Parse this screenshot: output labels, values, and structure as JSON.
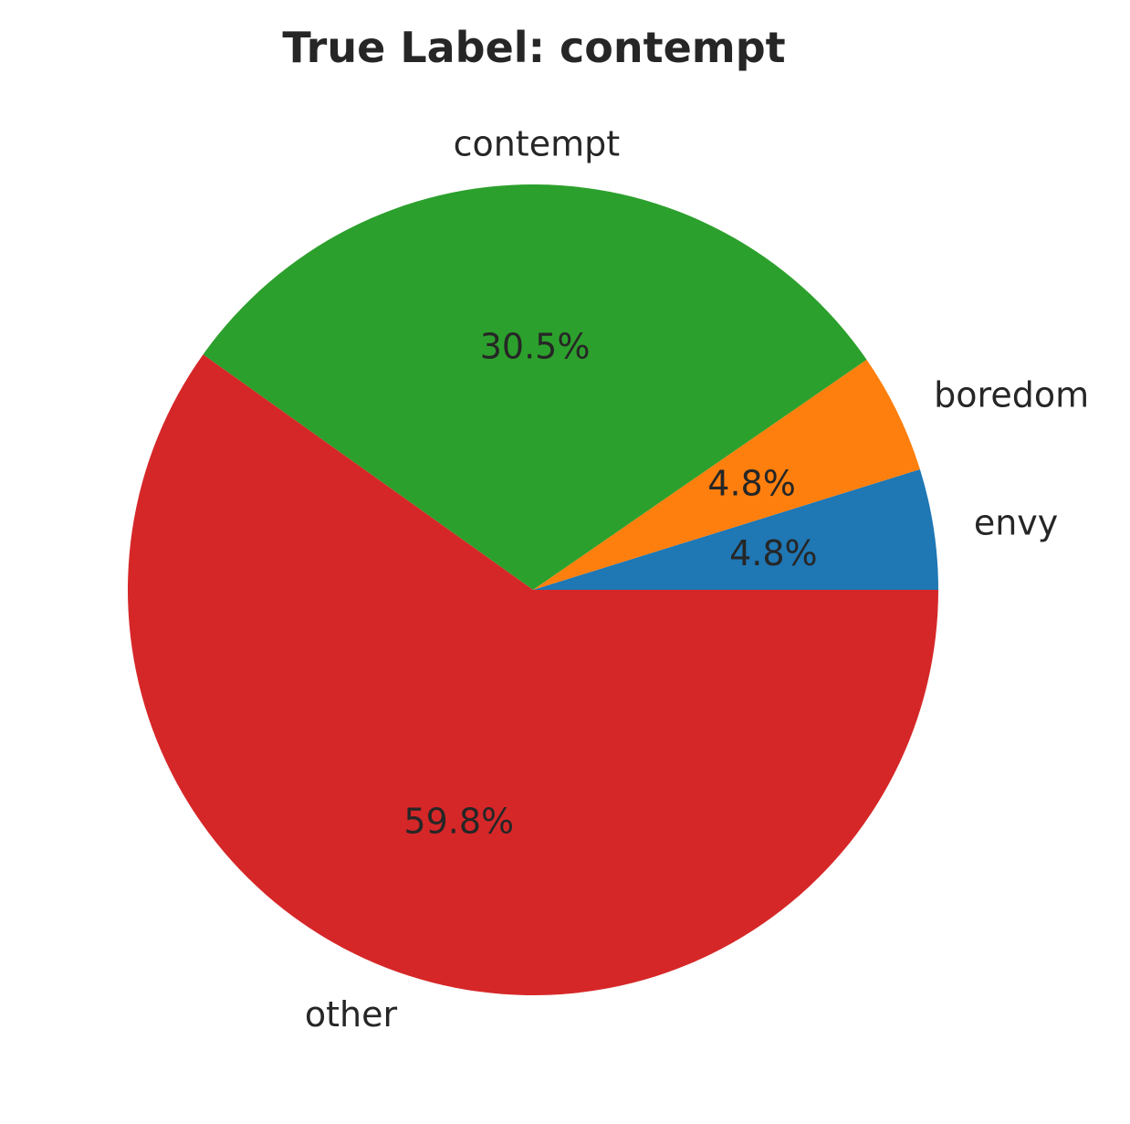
{
  "chart_data": {
    "type": "pie",
    "title": "True Label: contempt",
    "categories": [
      "envy",
      "boredom",
      "contempt",
      "other"
    ],
    "values": [
      4.8,
      4.8,
      30.5,
      59.8
    ],
    "value_labels": [
      "4.8%",
      "4.8%",
      "30.5%",
      "59.8%"
    ],
    "colors": [
      "#1f77b4",
      "#ff7f0e",
      "#2ca02c",
      "#d62728"
    ],
    "start_angle_deg": 0,
    "direction": "counterclockwise",
    "legend": "none"
  }
}
